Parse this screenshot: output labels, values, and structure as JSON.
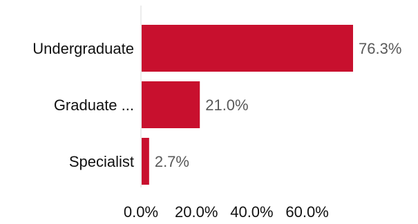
{
  "chart_data": {
    "type": "bar",
    "orientation": "horizontal",
    "categories": [
      "Undergraduate",
      "Graduate ...",
      "Specialist"
    ],
    "values": [
      76.3,
      21.0,
      2.7
    ],
    "value_labels": [
      "76.3%",
      "21.0%",
      "2.7%"
    ],
    "x_ticks": [
      0,
      20,
      40,
      60
    ],
    "x_tick_labels": [
      "0.0%",
      "20.0%",
      "40.0%",
      "60.0%"
    ],
    "xlim": [
      0,
      76.3
    ],
    "title": "",
    "xlabel": "",
    "ylabel": "",
    "grid": false,
    "legend": "none",
    "colors": {
      "bar": "#c8102e",
      "axis": "#d9d9d9",
      "value_text": "#595959",
      "label_text": "#111111"
    }
  }
}
